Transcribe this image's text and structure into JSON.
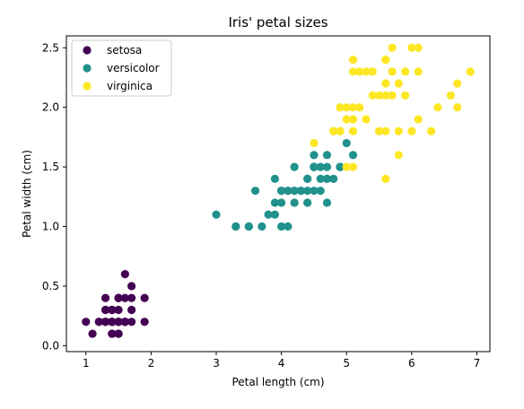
{
  "chart_data": {
    "type": "scatter",
    "title": "Iris' petal sizes",
    "xlabel": "Petal length (cm)",
    "ylabel": "Petal width (cm)",
    "xlim": [
      0.7,
      7.2
    ],
    "ylim": [
      -0.05,
      2.6
    ],
    "xticks": [
      1,
      2,
      3,
      4,
      5,
      6,
      7
    ],
    "xtick_labels": [
      "1",
      "2",
      "3",
      "4",
      "5",
      "6",
      "7"
    ],
    "yticks": [
      0.0,
      0.5,
      1.0,
      1.5,
      2.0,
      2.5
    ],
    "ytick_labels": [
      "0.0",
      "0.5",
      "1.0",
      "1.5",
      "2.0",
      "2.5"
    ],
    "grid": false,
    "legend_position": "top-left",
    "series": [
      {
        "name": "setosa",
        "color": "#440154",
        "points": [
          [
            1.4,
            0.2
          ],
          [
            1.4,
            0.2
          ],
          [
            1.3,
            0.2
          ],
          [
            1.5,
            0.2
          ],
          [
            1.4,
            0.2
          ],
          [
            1.7,
            0.4
          ],
          [
            1.4,
            0.3
          ],
          [
            1.5,
            0.2
          ],
          [
            1.4,
            0.2
          ],
          [
            1.5,
            0.1
          ],
          [
            1.5,
            0.2
          ],
          [
            1.6,
            0.2
          ],
          [
            1.4,
            0.1
          ],
          [
            1.1,
            0.1
          ],
          [
            1.2,
            0.2
          ],
          [
            1.5,
            0.4
          ],
          [
            1.3,
            0.4
          ],
          [
            1.4,
            0.3
          ],
          [
            1.7,
            0.3
          ],
          [
            1.5,
            0.3
          ],
          [
            1.7,
            0.2
          ],
          [
            1.5,
            0.4
          ],
          [
            1.0,
            0.2
          ],
          [
            1.7,
            0.5
          ],
          [
            1.9,
            0.2
          ],
          [
            1.6,
            0.2
          ],
          [
            1.6,
            0.4
          ],
          [
            1.5,
            0.2
          ],
          [
            1.4,
            0.2
          ],
          [
            1.6,
            0.2
          ],
          [
            1.6,
            0.2
          ],
          [
            1.5,
            0.4
          ],
          [
            1.5,
            0.1
          ],
          [
            1.4,
            0.2
          ],
          [
            1.5,
            0.2
          ],
          [
            1.2,
            0.2
          ],
          [
            1.3,
            0.2
          ],
          [
            1.4,
            0.1
          ],
          [
            1.3,
            0.2
          ],
          [
            1.5,
            0.2
          ],
          [
            1.3,
            0.3
          ],
          [
            1.3,
            0.3
          ],
          [
            1.3,
            0.2
          ],
          [
            1.6,
            0.6
          ],
          [
            1.9,
            0.4
          ],
          [
            1.4,
            0.3
          ],
          [
            1.6,
            0.2
          ],
          [
            1.4,
            0.2
          ],
          [
            1.5,
            0.2
          ],
          [
            1.4,
            0.2
          ]
        ]
      },
      {
        "name": "versicolor",
        "color": "#21918c",
        "points": [
          [
            4.7,
            1.4
          ],
          [
            4.5,
            1.5
          ],
          [
            4.9,
            1.5
          ],
          [
            4.0,
            1.3
          ],
          [
            4.6,
            1.5
          ],
          [
            4.5,
            1.3
          ],
          [
            4.7,
            1.6
          ],
          [
            3.3,
            1.0
          ],
          [
            4.6,
            1.3
          ],
          [
            3.9,
            1.4
          ],
          [
            3.5,
            1.0
          ],
          [
            4.2,
            1.5
          ],
          [
            4.0,
            1.0
          ],
          [
            4.7,
            1.4
          ],
          [
            3.6,
            1.3
          ],
          [
            4.4,
            1.4
          ],
          [
            4.5,
            1.5
          ],
          [
            4.1,
            1.0
          ],
          [
            4.5,
            1.5
          ],
          [
            3.9,
            1.1
          ],
          [
            4.8,
            1.8
          ],
          [
            4.0,
            1.3
          ],
          [
            4.9,
            1.5
          ],
          [
            4.7,
            1.2
          ],
          [
            4.3,
            1.3
          ],
          [
            4.4,
            1.4
          ],
          [
            4.8,
            1.4
          ],
          [
            5.0,
            1.7
          ],
          [
            4.5,
            1.5
          ],
          [
            3.5,
            1.0
          ],
          [
            3.8,
            1.1
          ],
          [
            3.7,
            1.0
          ],
          [
            3.9,
            1.2
          ],
          [
            5.1,
            1.6
          ],
          [
            4.5,
            1.5
          ],
          [
            4.5,
            1.6
          ],
          [
            4.7,
            1.5
          ],
          [
            4.4,
            1.3
          ],
          [
            4.1,
            1.3
          ],
          [
            4.0,
            1.3
          ],
          [
            4.4,
            1.2
          ],
          [
            4.6,
            1.4
          ],
          [
            4.0,
            1.2
          ],
          [
            3.3,
            1.0
          ],
          [
            4.2,
            1.3
          ],
          [
            4.2,
            1.2
          ],
          [
            4.2,
            1.3
          ],
          [
            4.3,
            1.3
          ],
          [
            3.0,
            1.1
          ],
          [
            4.1,
            1.3
          ]
        ]
      },
      {
        "name": "virginica",
        "color": "#fde725",
        "points": [
          [
            6.0,
            2.5
          ],
          [
            5.1,
            1.9
          ],
          [
            5.9,
            2.1
          ],
          [
            5.6,
            1.8
          ],
          [
            5.8,
            2.2
          ],
          [
            6.6,
            2.1
          ],
          [
            4.5,
            1.7
          ],
          [
            6.3,
            1.8
          ],
          [
            5.8,
            1.8
          ],
          [
            6.1,
            2.5
          ],
          [
            5.1,
            2.0
          ],
          [
            5.3,
            1.9
          ],
          [
            5.5,
            2.1
          ],
          [
            5.0,
            2.0
          ],
          [
            5.1,
            2.4
          ],
          [
            5.3,
            2.3
          ],
          [
            5.5,
            1.8
          ],
          [
            6.7,
            2.2
          ],
          [
            6.9,
            2.3
          ],
          [
            5.0,
            1.5
          ],
          [
            5.7,
            2.3
          ],
          [
            4.9,
            2.0
          ],
          [
            6.7,
            2.0
          ],
          [
            4.9,
            1.8
          ],
          [
            5.7,
            2.1
          ],
          [
            6.0,
            1.8
          ],
          [
            4.8,
            1.8
          ],
          [
            4.9,
            1.8
          ],
          [
            5.6,
            2.1
          ],
          [
            5.8,
            1.6
          ],
          [
            6.1,
            1.9
          ],
          [
            6.4,
            2.0
          ],
          [
            5.6,
            2.2
          ],
          [
            5.1,
            1.5
          ],
          [
            5.6,
            1.4
          ],
          [
            6.1,
            2.3
          ],
          [
            5.6,
            2.4
          ],
          [
            5.5,
            1.8
          ],
          [
            4.8,
            1.8
          ],
          [
            5.4,
            2.1
          ],
          [
            5.6,
            2.4
          ],
          [
            5.1,
            2.3
          ],
          [
            5.1,
            1.9
          ],
          [
            5.9,
            2.3
          ],
          [
            5.7,
            2.5
          ],
          [
            5.2,
            2.3
          ],
          [
            5.0,
            1.9
          ],
          [
            5.2,
            2.0
          ],
          [
            5.4,
            2.3
          ],
          [
            5.1,
            1.8
          ]
        ]
      }
    ]
  }
}
